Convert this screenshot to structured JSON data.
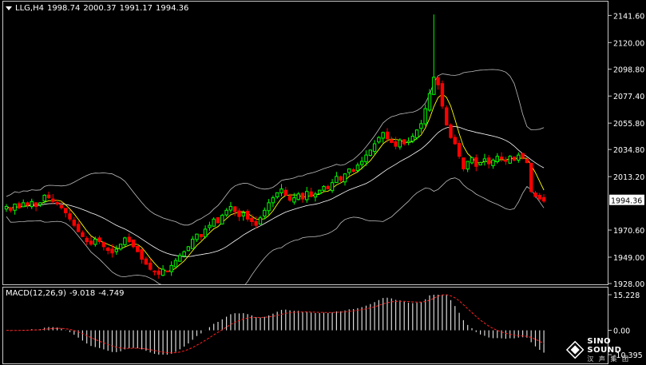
{
  "header": {
    "symbol": "LLG,H4",
    "open": "1998.74",
    "high": "2000.37",
    "low": "1991.17",
    "close": "1994.36"
  },
  "macd": {
    "label": "MACD(12,26,9)",
    "value1": "-9.018",
    "value2": "-4.749"
  },
  "price_axis": {
    "ticks": [
      "2141.60",
      "2120.00",
      "2098.80",
      "2077.40",
      "2055.80",
      "2034.80",
      "2013.20",
      "1994.36",
      "1970.60",
      "1949.00",
      "1928.00"
    ],
    "current": "1994.36"
  },
  "macd_axis": {
    "ticks": [
      "15.228",
      "0.00",
      "-10.395"
    ]
  },
  "logo": {
    "brand": "SINO SOUND",
    "sub": "汉 声 集 团"
  },
  "colors": {
    "bull": "#00ff00",
    "bear": "#ff0000",
    "signal": "#ff2020",
    "bands": "#bfbfbf",
    "ma_fast": "#ffff00",
    "ma_slow": "#ffffff",
    "background": "#000000",
    "price_label_bg": "#ffffff"
  },
  "chart_data": {
    "type": "candlestick",
    "symbol": "LLG",
    "timeframe": "H4",
    "ylim": [
      1928.0,
      2152.0
    ],
    "closes": [
      1990,
      1987,
      1992,
      1989,
      1993,
      1991,
      1994,
      1990,
      1993,
      1999,
      1997,
      1994,
      1992,
      1989,
      1985,
      1980,
      1975,
      1970,
      1966,
      1962,
      1960,
      1964,
      1962,
      1958,
      1955,
      1953,
      1956,
      1960,
      1965,
      1962,
      1958,
      1954,
      1948,
      1944,
      1940,
      1938,
      1936,
      1940,
      1938,
      1943,
      1947,
      1951,
      1954,
      1958,
      1964,
      1968,
      1966,
      1972,
      1975,
      1980,
      1977,
      1983,
      1987,
      1990,
      1986,
      1982,
      1985,
      1980,
      1978,
      1975,
      1981,
      1987,
      1993,
      1997,
      2001,
      2004,
      1999,
      1995,
      1997,
      2000,
      1996,
      2002,
      1998,
      2000,
      2003,
      2006,
      2004,
      2009,
      2014,
      2011,
      2016,
      2020,
      2018,
      2023,
      2026,
      2031,
      2035,
      2040,
      2045,
      2049,
      2044,
      2041,
      2038,
      2043,
      2040,
      2042,
      2046,
      2051,
      2056,
      2068,
      2080,
      2093,
      2087,
      2070,
      2055,
      2045,
      2040,
      2030,
      2020,
      2026,
      2029,
      2022,
      2025,
      2028,
      2024,
      2027,
      2030,
      2028,
      2026,
      2030,
      2027,
      2031,
      2029,
      2025,
      2002,
      1998,
      1996,
      1994.36
    ],
    "candles_note": "closes approximate series of 128 H4 candles"
  }
}
